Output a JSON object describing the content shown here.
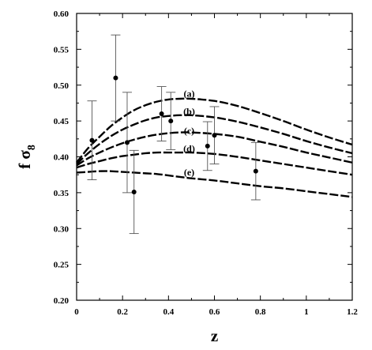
{
  "chart_data": {
    "type": "line",
    "xlabel": "z",
    "ylabel_main": "f σ",
    "ylabel_sub": "8",
    "xlim": [
      0,
      1.2
    ],
    "ylim": [
      0.2,
      0.6
    ],
    "x_ticks": [
      "0",
      "0.2",
      "0.4",
      "0.6",
      "0.8",
      "1",
      "1.2"
    ],
    "y_ticks": [
      "0.20",
      "0.25",
      "0.30",
      "0.35",
      "0.40",
      "0.45",
      "0.50",
      "0.55",
      "0.60"
    ],
    "grid": false,
    "line_style": "dashed-black",
    "curves": [
      {
        "label": "(a)",
        "label_at": [
          0.49,
          0.484
        ],
        "x": [
          0,
          0.05,
          0.1,
          0.15,
          0.2,
          0.25,
          0.3,
          0.35,
          0.4,
          0.45,
          0.5,
          0.6,
          0.7,
          0.8,
          0.9,
          1.0,
          1.1,
          1.2
        ],
        "y": [
          0.392,
          0.412,
          0.428,
          0.443,
          0.455,
          0.465,
          0.472,
          0.477,
          0.48,
          0.481,
          0.481,
          0.478,
          0.471,
          0.461,
          0.45,
          0.438,
          0.427,
          0.417
        ]
      },
      {
        "label": "(b)",
        "label_at": [
          0.49,
          0.459
        ],
        "x": [
          0,
          0.05,
          0.1,
          0.15,
          0.2,
          0.25,
          0.3,
          0.35,
          0.4,
          0.45,
          0.5,
          0.6,
          0.7,
          0.8,
          0.9,
          1.0,
          1.1,
          1.2
        ],
        "y": [
          0.39,
          0.405,
          0.418,
          0.429,
          0.438,
          0.445,
          0.451,
          0.455,
          0.457,
          0.458,
          0.458,
          0.455,
          0.449,
          0.441,
          0.432,
          0.422,
          0.413,
          0.405
        ]
      },
      {
        "label": "(c)",
        "label_at": [
          0.49,
          0.432
        ],
        "x": [
          0,
          0.05,
          0.1,
          0.15,
          0.2,
          0.25,
          0.3,
          0.35,
          0.4,
          0.45,
          0.5,
          0.6,
          0.7,
          0.8,
          0.9,
          1.0,
          1.1,
          1.2
        ],
        "y": [
          0.388,
          0.398,
          0.406,
          0.413,
          0.419,
          0.424,
          0.428,
          0.431,
          0.433,
          0.434,
          0.434,
          0.432,
          0.428,
          0.421,
          0.414,
          0.406,
          0.399,
          0.392
        ]
      },
      {
        "label": "(d)",
        "label_at": [
          0.49,
          0.407
        ],
        "x": [
          0,
          0.05,
          0.1,
          0.15,
          0.2,
          0.25,
          0.3,
          0.35,
          0.4,
          0.45,
          0.5,
          0.6,
          0.7,
          0.8,
          0.9,
          1.0,
          1.1,
          1.2
        ],
        "y": [
          0.385,
          0.39,
          0.394,
          0.398,
          0.401,
          0.403,
          0.405,
          0.406,
          0.406,
          0.406,
          0.406,
          0.404,
          0.4,
          0.395,
          0.39,
          0.385,
          0.38,
          0.375
        ]
      },
      {
        "label": "(e)",
        "label_at": [
          0.49,
          0.374
        ],
        "x": [
          0,
          0.05,
          0.1,
          0.15,
          0.2,
          0.25,
          0.3,
          0.35,
          0.4,
          0.45,
          0.5,
          0.6,
          0.7,
          0.8,
          0.9,
          1.0,
          1.1,
          1.2
        ],
        "y": [
          0.378,
          0.379,
          0.38,
          0.38,
          0.379,
          0.378,
          0.377,
          0.376,
          0.374,
          0.372,
          0.37,
          0.367,
          0.363,
          0.359,
          0.356,
          0.352,
          0.348,
          0.344
        ]
      }
    ],
    "data_points": [
      {
        "x": 0.067,
        "y": 0.423,
        "err": 0.055
      },
      {
        "x": 0.17,
        "y": 0.51,
        "err": 0.06
      },
      {
        "x": 0.22,
        "y": 0.42,
        "err": 0.07
      },
      {
        "x": 0.25,
        "y": 0.351,
        "err": 0.058
      },
      {
        "x": 0.37,
        "y": 0.46,
        "err": 0.038
      },
      {
        "x": 0.41,
        "y": 0.45,
        "err": 0.04
      },
      {
        "x": 0.57,
        "y": 0.415,
        "err": 0.034
      },
      {
        "x": 0.6,
        "y": 0.43,
        "err": 0.04
      },
      {
        "x": 0.78,
        "y": 0.38,
        "err": 0.04
      }
    ]
  }
}
